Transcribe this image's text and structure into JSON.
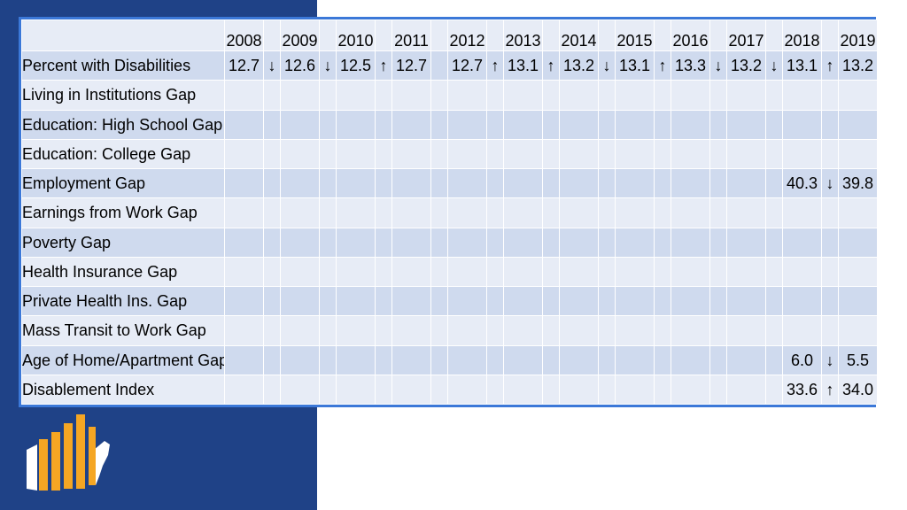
{
  "colors": {
    "side_panel": "#1f4287",
    "table_border": "#3b78d8",
    "row_dark": "#cfdaee",
    "row_light": "#e7ecf6",
    "logo_orange": "#f5a623",
    "logo_white": "#ffffff"
  },
  "logo": {
    "icon": "bar-chart-us-map-icon"
  },
  "table": {
    "years": [
      "2008",
      "2009",
      "2010",
      "2011",
      "2012",
      "2013",
      "2014",
      "2015",
      "2016",
      "2017",
      "2018",
      "2019"
    ],
    "rows": [
      {
        "label": "Percent with Disabilities",
        "values": [
          "12.7",
          "12.6",
          "12.5",
          "12.7",
          "12.7",
          "13.1",
          "13.2",
          "13.1",
          "13.3",
          "13.2",
          "13.1",
          "13.2"
        ],
        "arrows": [
          "↓",
          "↓",
          "↑",
          "",
          "↑",
          "↑",
          "↓",
          "↑",
          "↓",
          "↓",
          "↑"
        ]
      },
      {
        "label": "Living in Institutions Gap",
        "values": [
          "",
          "",
          "",
          "",
          "",
          "",
          "",
          "",
          "",
          "",
          "",
          ""
        ],
        "arrows": [
          "",
          "",
          "",
          "",
          "",
          "",
          "",
          "",
          "",
          "",
          ""
        ]
      },
      {
        "label": "Education: High School Gap",
        "values": [
          "",
          "",
          "",
          "",
          "",
          "",
          "",
          "",
          "",
          "",
          "",
          ""
        ],
        "arrows": [
          "",
          "",
          "",
          "",
          "",
          "",
          "",
          "",
          "",
          "",
          ""
        ]
      },
      {
        "label": "Education: College Gap",
        "values": [
          "",
          "",
          "",
          "",
          "",
          "",
          "",
          "",
          "",
          "",
          "",
          ""
        ],
        "arrows": [
          "",
          "",
          "",
          "",
          "",
          "",
          "",
          "",
          "",
          "",
          ""
        ]
      },
      {
        "label": "Employment Gap",
        "values": [
          "",
          "",
          "",
          "",
          "",
          "",
          "",
          "",
          "",
          "",
          "40.3",
          "39.8"
        ],
        "arrows": [
          "",
          "",
          "",
          "",
          "",
          "",
          "",
          "",
          "",
          "",
          "↓"
        ]
      },
      {
        "label": "Earnings from Work Gap",
        "values": [
          "",
          "",
          "",
          "",
          "",
          "",
          "",
          "",
          "",
          "",
          "",
          ""
        ],
        "arrows": [
          "",
          "",
          "",
          "",
          "",
          "",
          "",
          "",
          "",
          "",
          ""
        ]
      },
      {
        "label": "Poverty Gap",
        "values": [
          "",
          "",
          "",
          "",
          "",
          "",
          "",
          "",
          "",
          "",
          "",
          ""
        ],
        "arrows": [
          "",
          "",
          "",
          "",
          "",
          "",
          "",
          "",
          "",
          "",
          ""
        ]
      },
      {
        "label": "Health Insurance Gap",
        "values": [
          "",
          "",
          "",
          "",
          "",
          "",
          "",
          "",
          "",
          "",
          "",
          ""
        ],
        "arrows": [
          "",
          "",
          "",
          "",
          "",
          "",
          "",
          "",
          "",
          "",
          ""
        ]
      },
      {
        "label": "Private Health Ins. Gap",
        "values": [
          "",
          "",
          "",
          "",
          "",
          "",
          "",
          "",
          "",
          "",
          "",
          ""
        ],
        "arrows": [
          "",
          "",
          "",
          "",
          "",
          "",
          "",
          "",
          "",
          "",
          ""
        ]
      },
      {
        "label": "Mass Transit to Work Gap",
        "values": [
          "",
          "",
          "",
          "",
          "",
          "",
          "",
          "",
          "",
          "",
          "",
          ""
        ],
        "arrows": [
          "",
          "",
          "",
          "",
          "",
          "",
          "",
          "",
          "",
          "",
          ""
        ]
      },
      {
        "label": "Age of Home/Apartment Gap",
        "values": [
          "",
          "",
          "",
          "",
          "",
          "",
          "",
          "",
          "",
          "",
          "6.0",
          "5.5"
        ],
        "arrows": [
          "",
          "",
          "",
          "",
          "",
          "",
          "",
          "",
          "",
          "",
          "↓"
        ]
      },
      {
        "label": "Disablement Index",
        "values": [
          "",
          "",
          "",
          "",
          "",
          "",
          "",
          "",
          "",
          "",
          "33.6",
          "34.0"
        ],
        "arrows": [
          "",
          "",
          "",
          "",
          "",
          "",
          "",
          "",
          "",
          "",
          "↑"
        ]
      }
    ]
  }
}
